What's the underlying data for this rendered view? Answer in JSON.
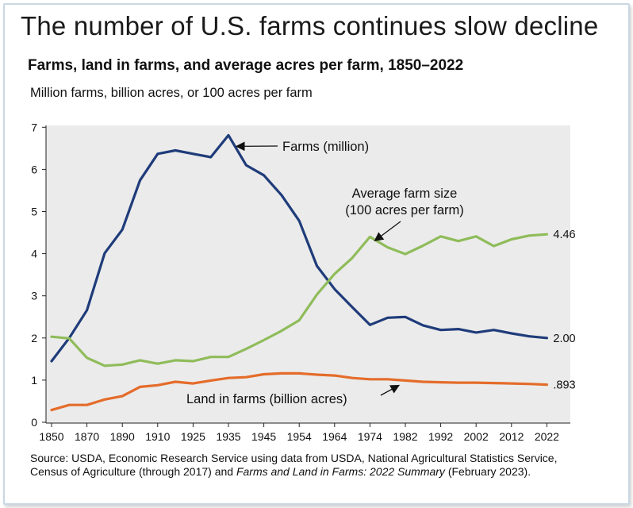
{
  "headline": "The number of U.S. farms continues slow decline",
  "chart_data": {
    "type": "line",
    "title": "Farms, land in farms, and average acres per farm, 1850–2022",
    "subtitle": "Million farms, billion acres, or 100 acres per farm",
    "x_tick_labels": [
      "1850",
      "1870",
      "1890",
      "1910",
      "1925",
      "1935",
      "1945",
      "1954",
      "1964",
      "1974",
      "1982",
      "1992",
      "2002",
      "2012",
      "2022"
    ],
    "y_ticks": [
      0,
      1,
      2,
      3,
      4,
      5,
      6,
      7
    ],
    "ylim": [
      0,
      7
    ],
    "grid": false,
    "series": [
      {
        "name": "Farms (million)",
        "color": "#1f3c7a",
        "end_label": "2.00",
        "points": [
          [
            0,
            1.45
          ],
          [
            1,
            2.0
          ],
          [
            2,
            2.66
          ],
          [
            3,
            4.01
          ],
          [
            4,
            4.57
          ],
          [
            5,
            5.74
          ],
          [
            6,
            6.37
          ],
          [
            7,
            6.45
          ],
          [
            8,
            6.37
          ],
          [
            9,
            6.29
          ],
          [
            10,
            6.81
          ],
          [
            11,
            6.1
          ],
          [
            12,
            5.86
          ],
          [
            13,
            5.39
          ],
          [
            14,
            4.78
          ],
          [
            15,
            3.71
          ],
          [
            16,
            3.16
          ],
          [
            17,
            2.73
          ],
          [
            18,
            2.31
          ],
          [
            19,
            2.48
          ],
          [
            20,
            2.5
          ],
          [
            21,
            2.3
          ],
          [
            22,
            2.19
          ],
          [
            23,
            2.21
          ],
          [
            24,
            2.13
          ],
          [
            25,
            2.19
          ],
          [
            26,
            2.11
          ],
          [
            27,
            2.04
          ],
          [
            28,
            2.0
          ]
        ]
      },
      {
        "name": "Average farm size\n(100 acres per farm)",
        "color": "#8fbc5a",
        "end_label": "4.46",
        "points": [
          [
            0,
            2.03
          ],
          [
            1,
            1.99
          ],
          [
            2,
            1.53
          ],
          [
            3,
            1.34
          ],
          [
            4,
            1.37
          ],
          [
            5,
            1.47
          ],
          [
            6,
            1.39
          ],
          [
            7,
            1.47
          ],
          [
            8,
            1.45
          ],
          [
            9,
            1.55
          ],
          [
            10,
            1.55
          ],
          [
            11,
            1.74
          ],
          [
            12,
            1.95
          ],
          [
            13,
            2.17
          ],
          [
            14,
            2.42
          ],
          [
            15,
            3.03
          ],
          [
            16,
            3.52
          ],
          [
            17,
            3.9
          ],
          [
            18,
            4.4
          ],
          [
            19,
            4.15
          ],
          [
            20,
            3.99
          ],
          [
            21,
            4.19
          ],
          [
            22,
            4.41
          ],
          [
            23,
            4.3
          ],
          [
            24,
            4.41
          ],
          [
            25,
            4.18
          ],
          [
            26,
            4.34
          ],
          [
            27,
            4.43
          ],
          [
            28,
            4.46
          ]
        ]
      },
      {
        "name": "Land in farms (billion acres)",
        "color": "#e46c2a",
        "end_label": ".893",
        "points": [
          [
            0,
            0.29
          ],
          [
            1,
            0.41
          ],
          [
            2,
            0.41
          ],
          [
            3,
            0.54
          ],
          [
            4,
            0.62
          ],
          [
            5,
            0.84
          ],
          [
            6,
            0.88
          ],
          [
            7,
            0.96
          ],
          [
            8,
            0.92
          ],
          [
            9,
            0.99
          ],
          [
            10,
            1.05
          ],
          [
            11,
            1.07
          ],
          [
            12,
            1.14
          ],
          [
            13,
            1.16
          ],
          [
            14,
            1.16
          ],
          [
            15,
            1.13
          ],
          [
            16,
            1.11
          ],
          [
            17,
            1.05
          ],
          [
            18,
            1.02
          ],
          [
            19,
            1.02
          ],
          [
            20,
            0.99
          ],
          [
            21,
            0.96
          ],
          [
            22,
            0.95
          ],
          [
            23,
            0.94
          ],
          [
            24,
            0.94
          ],
          [
            25,
            0.93
          ],
          [
            26,
            0.92
          ],
          [
            27,
            0.91
          ],
          [
            28,
            0.893
          ]
        ]
      }
    ]
  },
  "source": {
    "text_1": "Source: USDA, Economic Research Service using data from USDA, National Agricultural Statistics Service, Census of Agriculture (through 2017) and ",
    "italic": "Farms and Land in Farms: 2022 Summary",
    "text_2": " (February 2023)."
  }
}
